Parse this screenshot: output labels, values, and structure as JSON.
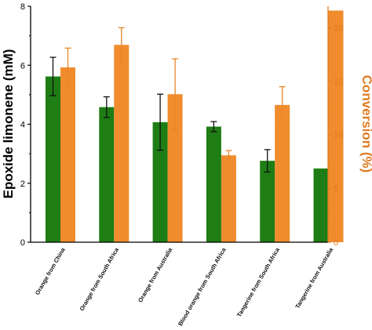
{
  "chart_data": {
    "type": "bar",
    "categories": [
      "Orange from China",
      "Orange from South Africa",
      "Orange from Australia",
      "Blood orange from South Africa",
      "Tangerine  from South Africa",
      "Tangerine from Australia"
    ],
    "series": [
      {
        "axis": "left",
        "color": "#1e7d14",
        "values": [
          5.62,
          4.58,
          4.07,
          3.92,
          2.76,
          2.5
        ],
        "errors": [
          0.65,
          0.35,
          0.95,
          0.17,
          0.38,
          0.0
        ]
      },
      {
        "axis": "right",
        "color": "#f08c2d",
        "values": [
          16.3,
          18.4,
          13.8,
          8.1,
          12.8,
          21.6
        ],
        "errors": [
          1.8,
          1.6,
          3.3,
          0.45,
          1.7,
          0.0
        ]
      }
    ],
    "ylabel": "Epoxide limonene (mM)",
    "y2label": "Conversion (%)",
    "ylim": [
      0,
      8
    ],
    "y2lim": [
      0,
      22
    ],
    "yticks": [
      0,
      2,
      4,
      6,
      8
    ],
    "y2ticks": [
      0,
      5,
      10,
      15,
      20
    ],
    "colors": {
      "left_axis": "#000000",
      "right_axis": "#e07b22"
    },
    "grid": false
  }
}
